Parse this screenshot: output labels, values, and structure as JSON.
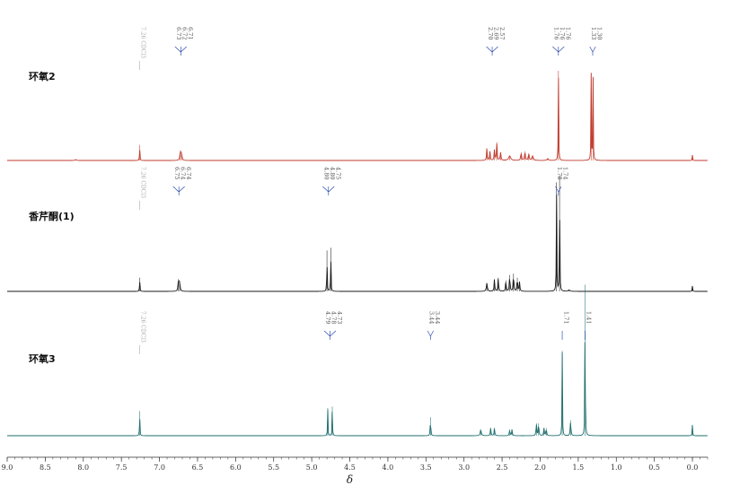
{
  "chart_data": {
    "type": "line",
    "xlabel": "δ",
    "x_reversed": true,
    "xlim": [
      9.0,
      -0.2
    ],
    "x_ticks": [
      "9.0",
      "8.5",
      "8.0",
      "7.5",
      "7.0",
      "6.5",
      "6.0",
      "5.5",
      "5.0",
      "4.5",
      "4.0",
      "3.5",
      "3.0",
      "2.5",
      "2.0",
      "1.5",
      "1.0",
      "0.5",
      "0.0"
    ],
    "grid": false,
    "spectra": [
      {
        "name": "环氧2",
        "color": "#c0392b",
        "solvent_label": "7.26 CDCl3",
        "peak_label_groups": [
          {
            "labels": [
              "6.73",
              "6.72",
              "6.71"
            ],
            "shift": 6.72
          },
          {
            "labels": [
              "2.70",
              "2.69",
              "2.57"
            ],
            "shift": 2.63
          },
          {
            "labels": [
              "1.76",
              "1.76",
              "1.76"
            ],
            "shift": 1.76
          },
          {
            "labels": [
              "1.33",
              "1.30"
            ],
            "shift": 1.31
          }
        ],
        "peaks": [
          {
            "shift": 8.1,
            "height": 0.01,
            "width": 0.02
          },
          {
            "shift": 7.26,
            "height": 0.17,
            "width": 0.006
          },
          {
            "shift": 6.725,
            "height": 0.11,
            "width": 0.012
          },
          {
            "shift": 6.71,
            "height": 0.08,
            "width": 0.012
          },
          {
            "shift": 2.7,
            "height": 0.13,
            "width": 0.01
          },
          {
            "shift": 2.66,
            "height": 0.1,
            "width": 0.01
          },
          {
            "shift": 2.6,
            "height": 0.12,
            "width": 0.01
          },
          {
            "shift": 2.57,
            "height": 0.2,
            "width": 0.01
          },
          {
            "shift": 2.52,
            "height": 0.09,
            "width": 0.012
          },
          {
            "shift": 2.4,
            "height": 0.05,
            "width": 0.03
          },
          {
            "shift": 2.25,
            "height": 0.09,
            "width": 0.012
          },
          {
            "shift": 2.2,
            "height": 0.1,
            "width": 0.012
          },
          {
            "shift": 2.15,
            "height": 0.08,
            "width": 0.012
          },
          {
            "shift": 2.1,
            "height": 0.05,
            "width": 0.02
          },
          {
            "shift": 1.9,
            "height": 0.02,
            "width": 0.02
          },
          {
            "shift": 1.76,
            "height": 0.98,
            "width": 0.006
          },
          {
            "shift": 1.33,
            "height": 0.95,
            "width": 0.006
          },
          {
            "shift": 1.305,
            "height": 0.9,
            "width": 0.006
          },
          {
            "shift": 0.0,
            "height": 0.06,
            "width": 0.006
          }
        ]
      },
      {
        "name": "香芹酮(1)",
        "color": "#1a1a1a",
        "solvent_label": "7.26 CDCl3",
        "peak_label_groups": [
          {
            "labels": [
              "6.75",
              "6.74",
              "6.74"
            ],
            "shift": 6.745
          },
          {
            "labels": [
              "4.80",
              "4.80",
              "4.75"
            ],
            "shift": 4.78
          },
          {
            "labels": [
              "1.78",
              "1.74"
            ],
            "shift": 1.76
          }
        ],
        "peaks": [
          {
            "shift": 7.26,
            "height": 0.1,
            "width": 0.006
          },
          {
            "shift": 6.75,
            "height": 0.09,
            "width": 0.012
          },
          {
            "shift": 6.735,
            "height": 0.07,
            "width": 0.012
          },
          {
            "shift": 4.8,
            "height": 0.3,
            "width": 0.006
          },
          {
            "shift": 4.75,
            "height": 0.32,
            "width": 0.006
          },
          {
            "shift": 2.7,
            "height": 0.06,
            "width": 0.015
          },
          {
            "shift": 2.6,
            "height": 0.09,
            "width": 0.01
          },
          {
            "shift": 2.55,
            "height": 0.1,
            "width": 0.01
          },
          {
            "shift": 2.45,
            "height": 0.08,
            "width": 0.01
          },
          {
            "shift": 2.4,
            "height": 0.12,
            "width": 0.01
          },
          {
            "shift": 2.35,
            "height": 0.13,
            "width": 0.01
          },
          {
            "shift": 2.3,
            "height": 0.1,
            "width": 0.01
          },
          {
            "shift": 2.27,
            "height": 0.07,
            "width": 0.01
          },
          {
            "shift": 1.785,
            "height": 0.8,
            "width": 0.006
          },
          {
            "shift": 1.745,
            "height": 0.85,
            "width": 0.006
          },
          {
            "shift": 1.62,
            "height": 0.01,
            "width": 0.02
          },
          {
            "shift": 0.0,
            "height": 0.04,
            "width": 0.006
          }
        ]
      },
      {
        "name": "环氧3",
        "color": "#1f6e6e",
        "solvent_label": "7.26 CDCl3",
        "peak_label_groups": [
          {
            "labels": [
              "4.79",
              "4.78",
              "4.73"
            ],
            "shift": 4.76
          },
          {
            "labels": [
              "3.44",
              "3.44"
            ],
            "shift": 3.44
          },
          {
            "labels": [
              "1.71"
            ],
            "shift": 1.71
          },
          {
            "labels": [
              "1.41"
            ],
            "shift": 1.41
          }
        ],
        "peaks": [
          {
            "shift": 7.26,
            "height": 0.16,
            "width": 0.006
          },
          {
            "shift": 4.79,
            "height": 0.18,
            "width": 0.006
          },
          {
            "shift": 4.73,
            "height": 0.19,
            "width": 0.006
          },
          {
            "shift": 3.44,
            "height": 0.12,
            "width": 0.008
          },
          {
            "shift": 2.78,
            "height": 0.04,
            "width": 0.015
          },
          {
            "shift": 2.65,
            "height": 0.05,
            "width": 0.01
          },
          {
            "shift": 2.6,
            "height": 0.05,
            "width": 0.01
          },
          {
            "shift": 2.4,
            "height": 0.04,
            "width": 0.01
          },
          {
            "shift": 2.37,
            "height": 0.04,
            "width": 0.01
          },
          {
            "shift": 2.05,
            "height": 0.08,
            "width": 0.01
          },
          {
            "shift": 2.02,
            "height": 0.08,
            "width": 0.01
          },
          {
            "shift": 1.95,
            "height": 0.05,
            "width": 0.01
          },
          {
            "shift": 1.92,
            "height": 0.05,
            "width": 0.01
          },
          {
            "shift": 1.71,
            "height": 0.55,
            "width": 0.006
          },
          {
            "shift": 1.6,
            "height": 0.1,
            "width": 0.01
          },
          {
            "shift": 1.41,
            "height": 0.98,
            "width": 0.006
          },
          {
            "shift": 0.0,
            "height": 0.07,
            "width": 0.006
          }
        ]
      }
    ]
  }
}
